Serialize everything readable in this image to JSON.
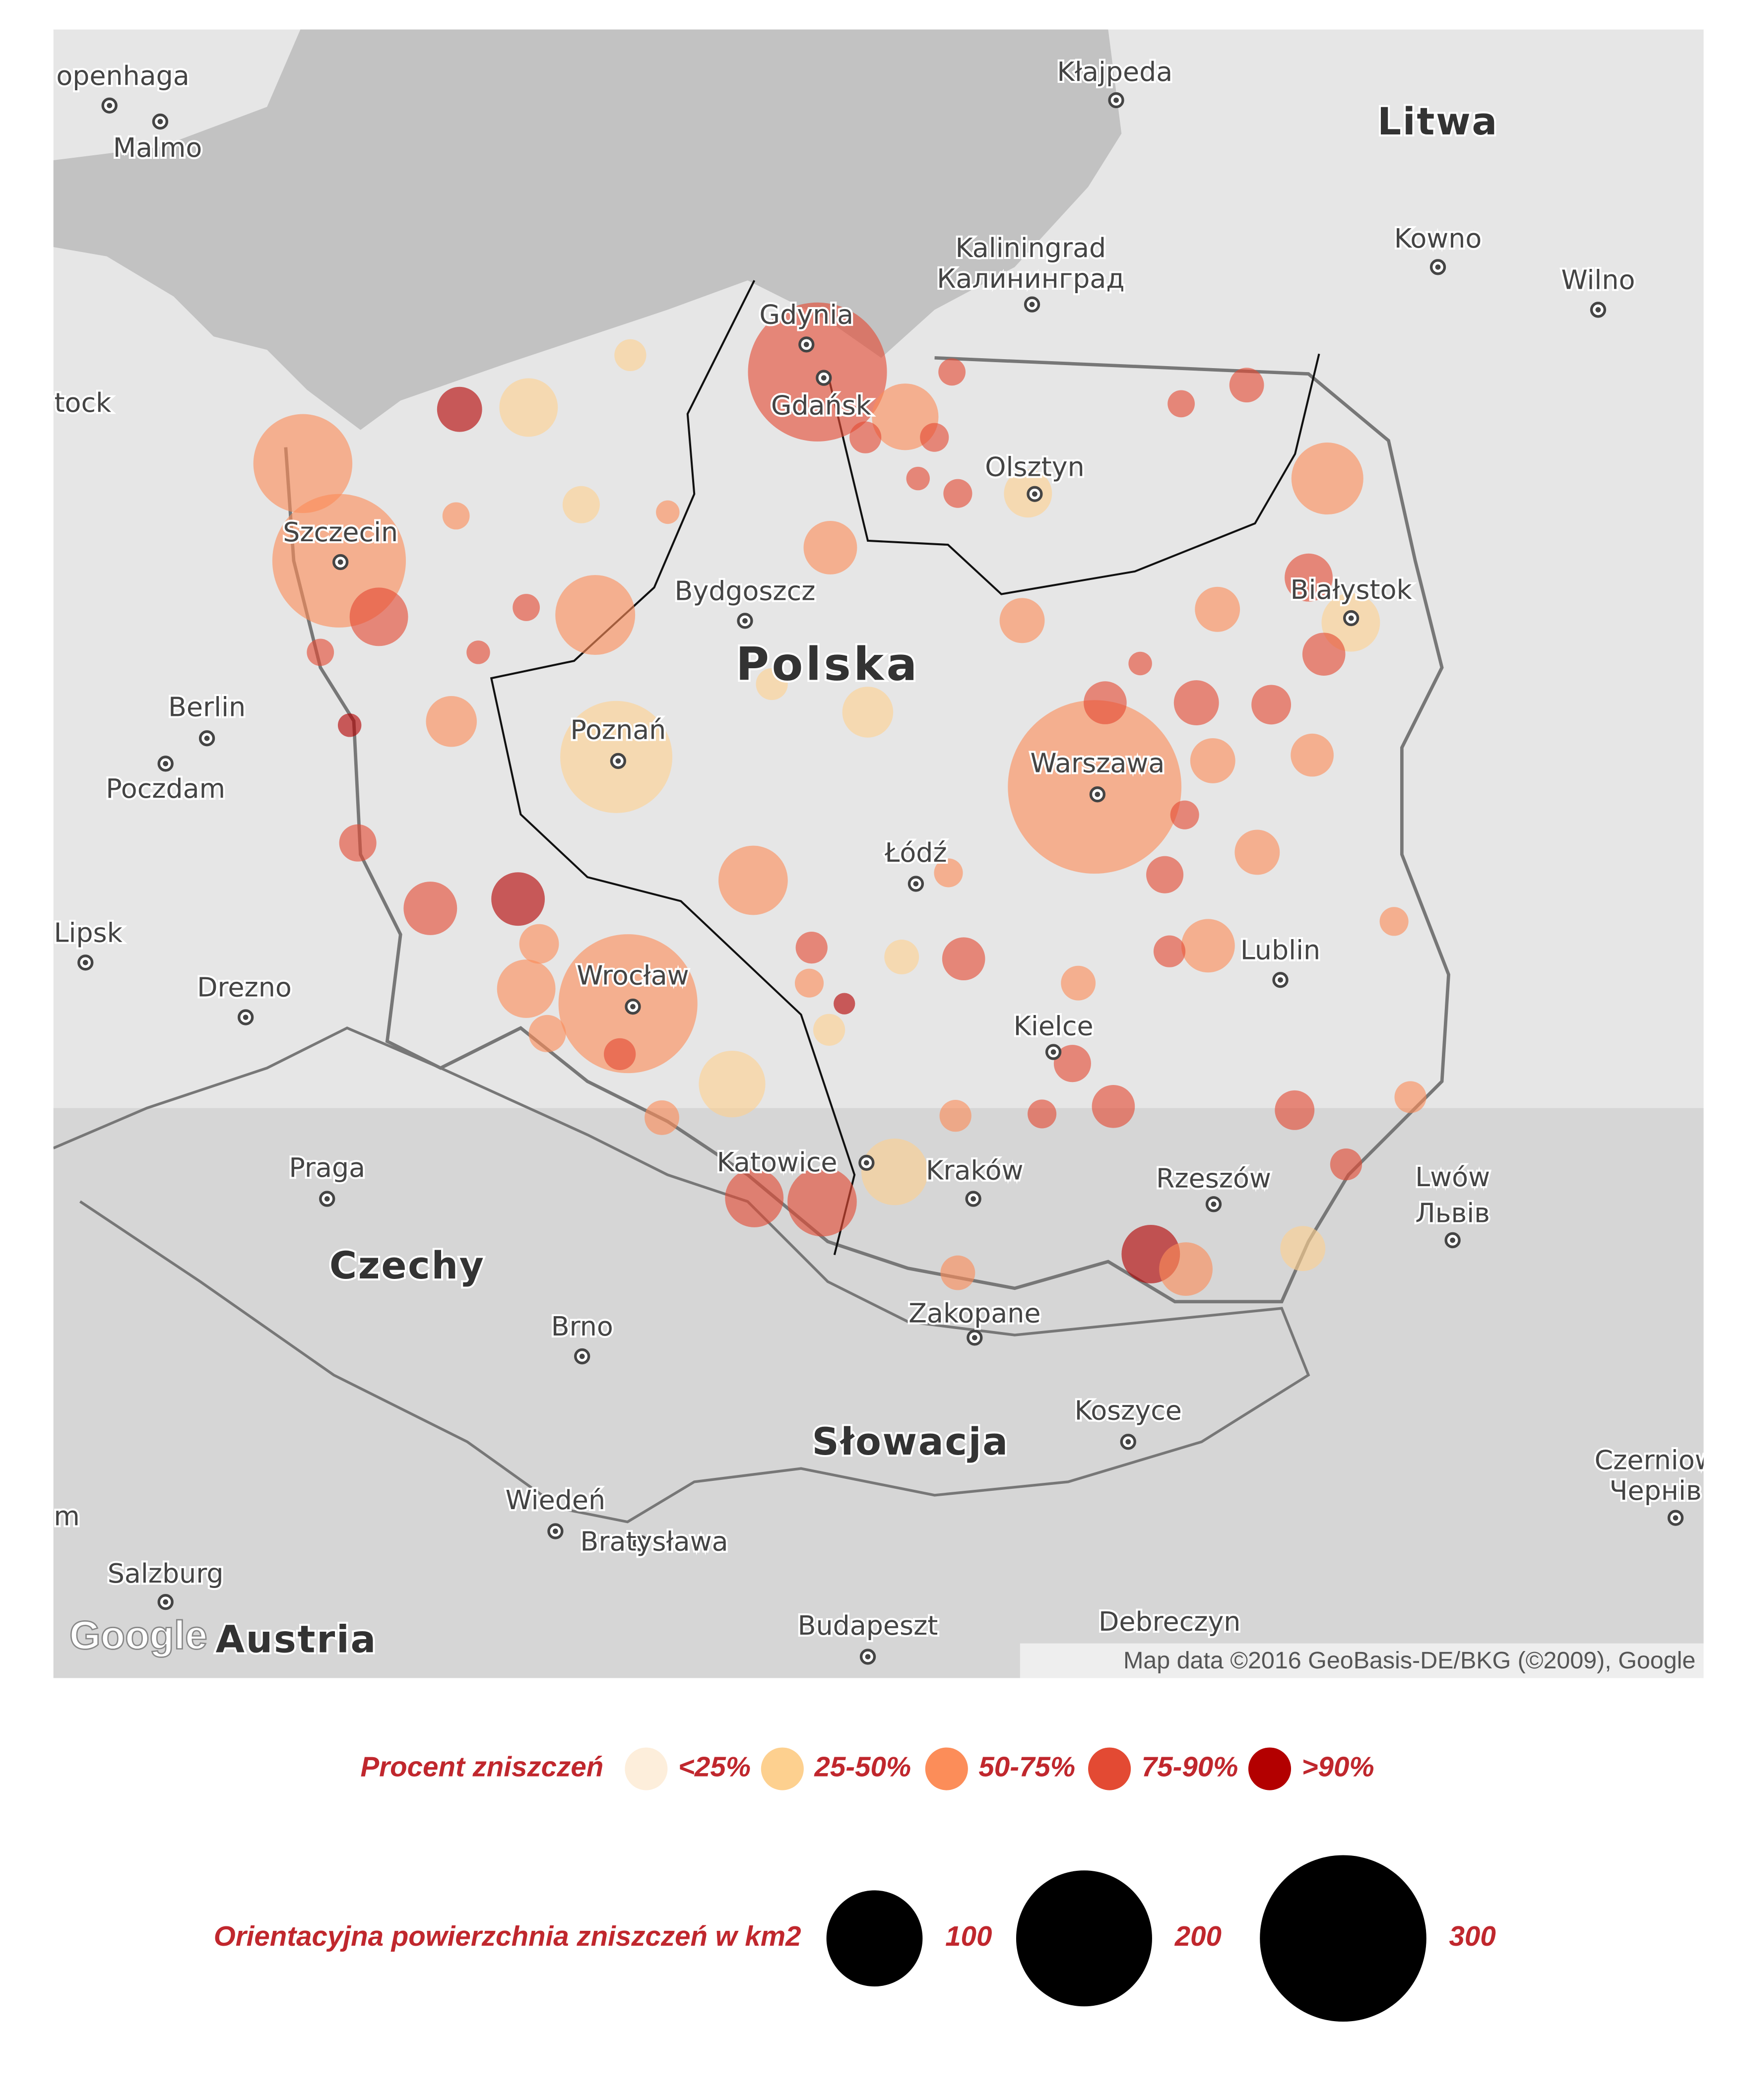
{
  "map": {
    "places": [
      "openhaga",
      "Malmo",
      "Kłajpeda",
      "Litwa",
      "Kaliningrad",
      "Калининград",
      "Kowno",
      "Wilno",
      "tock",
      "Gdynia",
      "Gdańsk",
      "Olsztyn",
      "Szczecin",
      "Bydgoszcz",
      "Białystok",
      "Polska",
      "Berlin",
      "Poznań",
      "Warszawa",
      "Poczdam",
      "Łódź",
      "Lipsk",
      "Lublin",
      "Wrocław",
      "Drezno",
      "Kielce",
      "Praga",
      "Katowice",
      "Kraków",
      "Rzeszów",
      "Lwów",
      "Львів",
      "Czechy",
      "Zakopane",
      "Brno",
      "Koszyce",
      "Słowacja",
      "Czerniow",
      "Чернів",
      "m",
      "Wiedeń",
      "Bratysława",
      "Salzburg",
      "Austria",
      "Budapeszt",
      "Debreczyn"
    ],
    "logo": "Google",
    "attribution": "Map data ©2016 GeoBasis-DE/BKG (©2009), Google",
    "color_legend": {
      "title": "Procent zniszczeń",
      "categories": [
        "<25%",
        "25-50%",
        "50-75%",
        "75-90%",
        ">90%"
      ],
      "colors": [
        "#fdeedb",
        "#fdd08f",
        "#fc8d59",
        "#e34a33",
        "#b30000"
      ]
    },
    "size_legend": {
      "title": "Orientacyjna powierzchnia zniszczeń w km2",
      "values": [
        100,
        200,
        300
      ]
    },
    "bubbles": [
      {
        "lon": 20.99,
        "lat": 52.26,
        "km2": 326,
        "class": "50-75%"
      },
      {
        "lon": 18.62,
        "lat": 54.48,
        "km2": 209,
        "class": "75-90%"
      },
      {
        "lon": 17.0,
        "lat": 51.1,
        "km2": 209,
        "class": "50-75%"
      },
      {
        "lon": 14.53,
        "lat": 53.47,
        "km2": 193,
        "class": "50-75%"
      },
      {
        "lon": 16.9,
        "lat": 52.42,
        "km2": 136,
        "class": "25-50%"
      },
      {
        "lon": 14.22,
        "lat": 53.99,
        "km2": 106,
        "class": "50-75%"
      },
      {
        "lon": 16.72,
        "lat": 53.18,
        "km2": 69,
        "class": "50-75%"
      },
      {
        "lon": 22.98,
        "lat": 53.91,
        "km2": 56,
        "class": "50-75%"
      },
      {
        "lon": 18.07,
        "lat": 51.76,
        "km2": 52,
        "class": "50-75%"
      },
      {
        "lon": 18.66,
        "lat": 50.04,
        "km2": 52,
        "class": "75-90%"
      },
      {
        "lon": 19.37,
        "lat": 54.24,
        "km2": 48,
        "class": "50-75%"
      },
      {
        "lon": 17.89,
        "lat": 50.67,
        "km2": 48,
        "class": "25-50%"
      },
      {
        "lon": 19.28,
        "lat": 50.2,
        "km2": 48,
        "class": "25-50%"
      },
      {
        "lon": 18.08,
        "lat": 50.06,
        "km2": 37,
        "class": "75-90%"
      },
      {
        "lon": 16.13,
        "lat": 51.18,
        "km2": 37,
        "class": "50-75%"
      },
      {
        "lon": 16.15,
        "lat": 54.29,
        "km2": 37,
        "class": "25-50%"
      },
      {
        "lon": 14.87,
        "lat": 53.17,
        "km2": 37,
        "class": "75-90%"
      },
      {
        "lon": 23.18,
        "lat": 53.14,
        "km2": 37,
        "class": "25-50%"
      },
      {
        "lon": 21.47,
        "lat": 49.76,
        "km2": 37,
        "class": ">90%"
      },
      {
        "lon": 16.06,
        "lat": 51.66,
        "km2": 31,
        "class": ">90%"
      },
      {
        "lon": 15.31,
        "lat": 51.61,
        "km2": 31,
        "class": "75-90%"
      },
      {
        "lon": 18.73,
        "lat": 53.54,
        "km2": 31,
        "class": "50-75%"
      },
      {
        "lon": 21.96,
        "lat": 51.41,
        "km2": 31,
        "class": "50-75%"
      },
      {
        "lon": 21.77,
        "lat": 49.68,
        "km2": 31,
        "class": "50-75%"
      },
      {
        "lon": 15.49,
        "lat": 52.61,
        "km2": 28,
        "class": "50-75%"
      },
      {
        "lon": 19.05,
        "lat": 52.66,
        "km2": 28,
        "class": "25-50%"
      },
      {
        "lon": 22.82,
        "lat": 53.38,
        "km2": 25,
        "class": "75-90%"
      },
      {
        "lon": 20.42,
        "lat": 53.83,
        "km2": 25,
        "class": "25-50%"
      },
      {
        "lon": 15.56,
        "lat": 54.28,
        "km2": 22,
        "class": ">90%"
      },
      {
        "lon": 20.37,
        "lat": 53.15,
        "km2": 22,
        "class": "50-75%"
      },
      {
        "lon": 22.04,
        "lat": 53.21,
        "km2": 22,
        "class": "50-75%"
      },
      {
        "lon": 21.86,
        "lat": 52.71,
        "km2": 22,
        "class": "75-90%"
      },
      {
        "lon": 22.38,
        "lat": 51.91,
        "km2": 22,
        "class": "50-75%"
      },
      {
        "lon": 22.0,
        "lat": 52.4,
        "km2": 22,
        "class": "50-75%"
      },
      {
        "lon": 22.77,
        "lat": 49.79,
        "km2": 22,
        "class": "25-50%"
      },
      {
        "lon": 22.95,
        "lat": 52.97,
        "km2": 20,
        "class": "75-90%"
      },
      {
        "lon": 21.08,
        "lat": 52.71,
        "km2": 20,
        "class": "75-90%"
      },
      {
        "lon": 22.85,
        "lat": 52.43,
        "km2": 20,
        "class": "50-75%"
      },
      {
        "lon": 19.87,
        "lat": 51.34,
        "km2": 20,
        "class": "75-90%"
      },
      {
        "lon": 21.15,
        "lat": 50.55,
        "km2": 20,
        "class": "75-90%"
      },
      {
        "lon": 22.5,
        "lat": 52.7,
        "km2": 17,
        "class": "75-90%"
      },
      {
        "lon": 22.7,
        "lat": 50.53,
        "km2": 17,
        "class": "75-90%"
      },
      {
        "lon": 16.24,
        "lat": 51.42,
        "km2": 17,
        "class": "50-75%"
      },
      {
        "lon": 21.59,
        "lat": 51.79,
        "km2": 15,
        "class": "75-90%"
      },
      {
        "lon": 20.8,
        "lat": 50.78,
        "km2": 15,
        "class": "75-90%"
      },
      {
        "lon": 14.69,
        "lat": 51.96,
        "km2": 15,
        "class": "75-90%"
      },
      {
        "lon": 16.6,
        "lat": 53.77,
        "km2": 15,
        "class": "25-50%"
      },
      {
        "lon": 16.31,
        "lat": 50.94,
        "km2": 15,
        "class": "50-75%"
      },
      {
        "lon": 19.82,
        "lat": 49.66,
        "km2": 13,
        "class": "50-75%"
      },
      {
        "lon": 22.29,
        "lat": 54.41,
        "km2": 13,
        "class": "75-90%"
      },
      {
        "lon": 20.85,
        "lat": 51.21,
        "km2": 13,
        "class": "50-75%"
      },
      {
        "lon": 17.29,
        "lat": 50.49,
        "km2": 13,
        "class": "50-75%"
      },
      {
        "lon": 19.34,
        "lat": 51.35,
        "km2": 13,
        "class": "25-50%"
      },
      {
        "lon": 23.69,
        "lat": 50.6,
        "km2": 11,
        "class": "50-75%"
      },
      {
        "lon": 23.14,
        "lat": 50.24,
        "km2": 11,
        "class": "75-90%"
      },
      {
        "lon": 17.02,
        "lat": 54.57,
        "km2": 11,
        "class": "25-50%"
      },
      {
        "lon": 18.57,
        "lat": 51.4,
        "km2": 11,
        "class": "75-90%"
      },
      {
        "lon": 19.8,
        "lat": 50.5,
        "km2": 11,
        "class": "50-75%"
      },
      {
        "lon": 21.63,
        "lat": 51.38,
        "km2": 11,
        "class": "75-90%"
      },
      {
        "lon": 16.93,
        "lat": 50.83,
        "km2": 11,
        "class": "75-90%"
      },
      {
        "lon": 18.72,
        "lat": 50.96,
        "km2": 11,
        "class": "25-50%"
      },
      {
        "lon": 18.23,
        "lat": 52.81,
        "km2": 11,
        "class": "25-50%"
      },
      {
        "lon": 19.03,
        "lat": 54.13,
        "km2": 11,
        "class": "75-90%"
      },
      {
        "lon": 19.82,
        "lat": 53.83,
        "km2": 9,
        "class": "75-90%"
      },
      {
        "lon": 18.55,
        "lat": 51.21,
        "km2": 9,
        "class": "50-75%"
      },
      {
        "lon": 20.54,
        "lat": 50.51,
        "km2": 9,
        "class": "75-90%"
      },
      {
        "lon": 19.74,
        "lat": 51.8,
        "km2": 9,
        "class": "50-75%"
      },
      {
        "lon": 23.55,
        "lat": 51.54,
        "km2": 9,
        "class": "50-75%"
      },
      {
        "lon": 21.76,
        "lat": 52.11,
        "km2": 9,
        "class": "75-90%"
      },
      {
        "lon": 19.62,
        "lat": 54.13,
        "km2": 9,
        "class": "75-90%"
      },
      {
        "lon": 21.73,
        "lat": 54.31,
        "km2": 8,
        "class": "75-90%"
      },
      {
        "lon": 19.77,
        "lat": 54.48,
        "km2": 8,
        "class": "75-90%"
      },
      {
        "lon": 14.37,
        "lat": 52.98,
        "km2": 8,
        "class": "75-90%"
      },
      {
        "lon": 15.53,
        "lat": 53.71,
        "km2": 8,
        "class": "50-75%"
      },
      {
        "lon": 16.13,
        "lat": 53.22,
        "km2": 8,
        "class": "75-90%"
      },
      {
        "lon": 14.62,
        "lat": 52.59,
        "km2": 6,
        "class": ">90%"
      },
      {
        "lon": 17.34,
        "lat": 53.73,
        "km2": 6,
        "class": "50-75%"
      },
      {
        "lon": 15.72,
        "lat": 52.98,
        "km2": 6,
        "class": "75-90%"
      },
      {
        "lon": 21.38,
        "lat": 52.92,
        "km2": 6,
        "class": "75-90%"
      },
      {
        "lon": 19.48,
        "lat": 53.91,
        "km2": 6,
        "class": "75-90%"
      },
      {
        "lon": 18.85,
        "lat": 51.1,
        "km2": 5,
        "class": ">90%"
      }
    ]
  }
}
